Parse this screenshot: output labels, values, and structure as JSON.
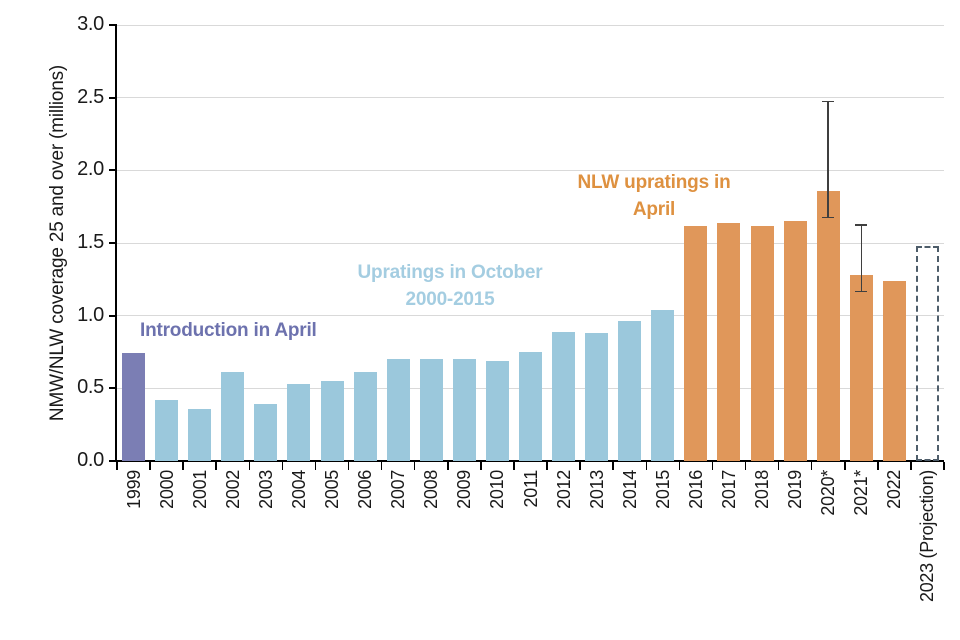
{
  "chart_data": {
    "type": "bar",
    "title": "",
    "ylabel": "NMW/NLW coverage 25 and over (millions)",
    "xlabel": "",
    "ylim": [
      0,
      3.0
    ],
    "ytick_step": 0.5,
    "yticks": [
      "0.0",
      "0.5",
      "1.0",
      "1.5",
      "2.0",
      "2.5",
      "3.0"
    ],
    "grid": "horizontal",
    "legend": "none",
    "bars": [
      {
        "label": "1999",
        "value": 0.74,
        "group": "introduction"
      },
      {
        "label": "2000",
        "value": 0.42,
        "group": "october"
      },
      {
        "label": "2001",
        "value": 0.36,
        "group": "october"
      },
      {
        "label": "2002",
        "value": 0.61,
        "group": "october"
      },
      {
        "label": "2003",
        "value": 0.39,
        "group": "october"
      },
      {
        "label": "2004",
        "value": 0.53,
        "group": "october"
      },
      {
        "label": "2005",
        "value": 0.55,
        "group": "october"
      },
      {
        "label": "2006",
        "value": 0.61,
        "group": "october"
      },
      {
        "label": "2007",
        "value": 0.7,
        "group": "october"
      },
      {
        "label": "2008",
        "value": 0.7,
        "group": "october"
      },
      {
        "label": "2009",
        "value": 0.7,
        "group": "october"
      },
      {
        "label": "2010",
        "value": 0.69,
        "group": "october"
      },
      {
        "label": "2011",
        "value": 0.75,
        "group": "october"
      },
      {
        "label": "2012",
        "value": 0.89,
        "group": "october"
      },
      {
        "label": "2013",
        "value": 0.88,
        "group": "october"
      },
      {
        "label": "2014",
        "value": 0.96,
        "group": "october"
      },
      {
        "label": "2015",
        "value": 1.04,
        "group": "october"
      },
      {
        "label": "2016",
        "value": 1.62,
        "group": "nlw"
      },
      {
        "label": "2017",
        "value": 1.64,
        "group": "nlw"
      },
      {
        "label": "2018",
        "value": 1.62,
        "group": "nlw"
      },
      {
        "label": "2019",
        "value": 1.65,
        "group": "nlw"
      },
      {
        "label": "2020*",
        "value": 1.86,
        "group": "nlw",
        "error_low": 1.67,
        "error_high": 2.48
      },
      {
        "label": "2021*",
        "value": 1.28,
        "group": "nlw",
        "error_low": 1.16,
        "error_high": 1.63
      },
      {
        "label": "2022",
        "value": 1.24,
        "group": "nlw"
      },
      {
        "label": "2023 (Projection)",
        "value": 1.48,
        "group": "projection"
      }
    ],
    "groups": {
      "introduction": {
        "color": "#7b7eb4",
        "meaning": "NMW introduction year"
      },
      "october": {
        "color": "#9bc8dc",
        "meaning": "Upratings in October 2000-2015"
      },
      "nlw": {
        "color": "#e0975a",
        "meaning": "NLW upratings in April"
      },
      "projection": {
        "color": "transparent",
        "border_color": "#4e5d6a",
        "style": "dashed",
        "meaning": "Projection"
      }
    },
    "annotations": [
      {
        "lines": [
          "Introduction in April"
        ],
        "color": "#6d72ae"
      },
      {
        "lines": [
          "Upratings in October",
          "2000-2015"
        ],
        "color": "#a4cde1"
      },
      {
        "lines": [
          "NLW upratings in",
          "April"
        ],
        "color": "#de9140"
      }
    ],
    "error_bar_color": "#3f3f3f"
  }
}
